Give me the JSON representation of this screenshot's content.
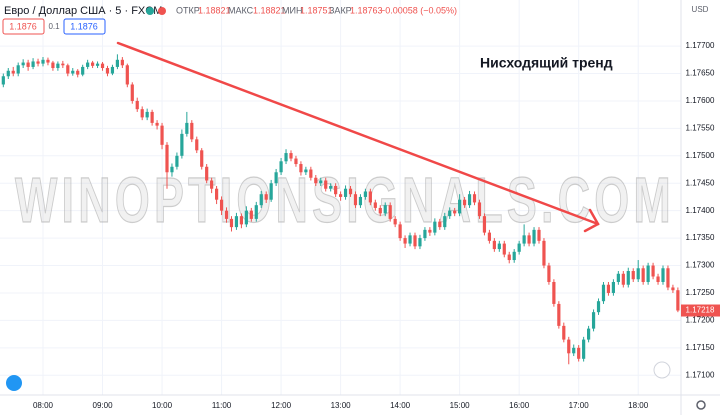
{
  "ui": {
    "symbol": "Евро / Доллар США · 5 · FXCM",
    "open_label": "ОТКР",
    "open": "1.18821",
    "high_label": "МАКС",
    "high": "1.18821",
    "low_label": "МИН",
    "low": "1.18751",
    "close_label": "ЗАКР",
    "close": "1.18763",
    "change": "−0.00058 (−0.05%)",
    "sell_price": "1.1876",
    "spread": "0.1",
    "buy_price": "1.1876",
    "currency": "USD",
    "watermark": "WINOPTIONSIGNALS.COM"
  },
  "chart_data": {
    "type": "candlestick",
    "annotation": "Нисходящий тренд",
    "up_color": "#26a69a",
    "down_color": "#ef5350",
    "grid": true,
    "ylim": [
      1.17064,
      1.17784
    ],
    "yticks": [
      {
        "value": 1.177,
        "label": "1.17700"
      },
      {
        "value": 1.1765,
        "label": "1.17650"
      },
      {
        "value": 1.176,
        "label": "1.17600"
      },
      {
        "value": 1.1755,
        "label": "1.17550"
      },
      {
        "value": 1.175,
        "label": "1.17500"
      },
      {
        "value": 1.1745,
        "label": "1.17450"
      },
      {
        "value": 1.174,
        "label": "1.17400"
      },
      {
        "value": 1.1735,
        "label": "1.17350"
      },
      {
        "value": 1.173,
        "label": "1.17300"
      },
      {
        "value": 1.1725,
        "label": "1.17250"
      },
      {
        "value": 1.172,
        "label": "1.17200"
      },
      {
        "value": 1.1715,
        "label": "1.17150"
      },
      {
        "value": 1.171,
        "label": "1.17100"
      }
    ],
    "categories": [
      null,
      null,
      null,
      null,
      null,
      null,
      null,
      null,
      "08:00",
      null,
      null,
      null,
      null,
      null,
      null,
      null,
      null,
      null,
      null,
      null,
      "09:00",
      null,
      null,
      null,
      null,
      null,
      null,
      null,
      null,
      null,
      null,
      null,
      "10:00",
      null,
      null,
      null,
      null,
      null,
      null,
      null,
      null,
      null,
      null,
      null,
      "11:00",
      null,
      null,
      null,
      null,
      null,
      null,
      null,
      null,
      null,
      null,
      null,
      "12:00",
      null,
      null,
      null,
      null,
      null,
      null,
      null,
      null,
      null,
      null,
      null,
      "13:00",
      null,
      null,
      null,
      null,
      null,
      null,
      null,
      null,
      null,
      null,
      null,
      "14:00",
      null,
      null,
      null,
      null,
      null,
      null,
      null,
      null,
      null,
      null,
      null,
      "15:00",
      null,
      null,
      null,
      null,
      null,
      null,
      null,
      null,
      null,
      null,
      null,
      "16:00",
      null,
      null,
      null,
      null,
      null,
      null,
      null,
      null,
      null,
      null,
      null,
      "17:00",
      null,
      null,
      null,
      null,
      null,
      null,
      null,
      null,
      null,
      null,
      null,
      "18:00",
      null,
      null,
      null,
      null,
      null,
      null,
      null,
      null
    ],
    "candles": [
      [
        1.1763,
        1.1765,
        1.17625,
        1.17645
      ],
      [
        1.17645,
        1.1766,
        1.1764,
        1.17655
      ],
      [
        1.17655,
        1.17662,
        1.17645,
        1.1765
      ],
      [
        1.1765,
        1.1767,
        1.17645,
        1.17665
      ],
      [
        1.17665,
        1.17676,
        1.1766,
        1.1767
      ],
      [
        1.1767,
        1.17675,
        1.17655,
        1.17662
      ],
      [
        1.17662,
        1.17678,
        1.17658,
        1.17672
      ],
      [
        1.17672,
        1.17677,
        1.17663,
        1.17668
      ],
      [
        1.17668,
        1.1768,
        1.17663,
        1.17675
      ],
      [
        1.17675,
        1.17679,
        1.17665,
        1.1767
      ],
      [
        1.1767,
        1.17673,
        1.17655,
        1.1766
      ],
      [
        1.1766,
        1.17672,
        1.17655,
        1.17668
      ],
      [
        1.17668,
        1.17673,
        1.1766,
        1.17665
      ],
      [
        1.17665,
        1.17668,
        1.17645,
        1.1765
      ],
      [
        1.1765,
        1.1766,
        1.17646,
        1.17655
      ],
      [
        1.17655,
        1.17658,
        1.17643,
        1.17648
      ],
      [
        1.17648,
        1.17666,
        1.17645,
        1.17662
      ],
      [
        1.17662,
        1.17675,
        1.17658,
        1.1767
      ],
      [
        1.1767,
        1.17673,
        1.1766,
        1.17664
      ],
      [
        1.17664,
        1.17672,
        1.1766,
        1.17668
      ],
      [
        1.17668,
        1.17671,
        1.17655,
        1.1766
      ],
      [
        1.1766,
        1.17664,
        1.17645,
        1.1765
      ],
      [
        1.1765,
        1.17666,
        1.17647,
        1.17662
      ],
      [
        1.17662,
        1.17685,
        1.17658,
        1.17675
      ],
      [
        1.17675,
        1.1768,
        1.1766,
        1.17665
      ],
      [
        1.17665,
        1.17668,
        1.17625,
        1.1763
      ],
      [
        1.1763,
        1.17634,
        1.17595,
        1.176
      ],
      [
        1.176,
        1.17606,
        1.1758,
        1.17585
      ],
      [
        1.17585,
        1.1759,
        1.17565,
        1.1757
      ],
      [
        1.1757,
        1.17586,
        1.17565,
        1.1758
      ],
      [
        1.1758,
        1.17584,
        1.17555,
        1.1756
      ],
      [
        1.1756,
        1.17565,
        1.17548,
        1.17555
      ],
      [
        1.17555,
        1.1756,
        1.17512,
        1.1752
      ],
      [
        1.1752,
        1.17525,
        1.1744,
        1.1747
      ],
      [
        1.1747,
        1.17486,
        1.17462,
        1.1748
      ],
      [
        1.1748,
        1.17506,
        1.17475,
        1.175
      ],
      [
        1.175,
        1.17548,
        1.17495,
        1.1754
      ],
      [
        1.1754,
        1.1758,
        1.17535,
        1.1756
      ],
      [
        1.1756,
        1.17565,
        1.17525,
        1.1753
      ],
      [
        1.1753,
        1.17535,
        1.17505,
        1.1751
      ],
      [
        1.1751,
        1.17514,
        1.17475,
        1.1748
      ],
      [
        1.1748,
        1.17485,
        1.1745,
        1.17455
      ],
      [
        1.17455,
        1.1746,
        1.17432,
        1.1744
      ],
      [
        1.1744,
        1.17445,
        1.17412,
        1.1742
      ],
      [
        1.1742,
        1.17426,
        1.17392,
        1.174
      ],
      [
        1.174,
        1.17406,
        1.17378,
        1.17385
      ],
      [
        1.17385,
        1.1739,
        1.17362,
        1.1737
      ],
      [
        1.1737,
        1.17396,
        1.17365,
        1.1739
      ],
      [
        1.1739,
        1.17395,
        1.17368,
        1.17375
      ],
      [
        1.17375,
        1.17408,
        1.1737,
        1.174
      ],
      [
        1.174,
        1.17405,
        1.1738,
        1.17385
      ],
      [
        1.17385,
        1.17416,
        1.1738,
        1.1741
      ],
      [
        1.1741,
        1.17436,
        1.17405,
        1.1743
      ],
      [
        1.1743,
        1.17435,
        1.17414,
        1.1742
      ],
      [
        1.1742,
        1.17456,
        1.17416,
        1.1745
      ],
      [
        1.1745,
        1.17476,
        1.17445,
        1.1747
      ],
      [
        1.1747,
        1.17496,
        1.17465,
        1.1749
      ],
      [
        1.1749,
        1.17512,
        1.17485,
        1.17505
      ],
      [
        1.17505,
        1.1751,
        1.1749,
        1.17495
      ],
      [
        1.17495,
        1.175,
        1.1748,
        1.17485
      ],
      [
        1.17485,
        1.1749,
        1.17464,
        1.1747
      ],
      [
        1.1747,
        1.1748,
        1.17465,
        1.17475
      ],
      [
        1.17475,
        1.1748,
        1.17455,
        1.1746
      ],
      [
        1.1746,
        1.17465,
        1.17445,
        1.1745
      ],
      [
        1.1745,
        1.1746,
        1.17445,
        1.17455
      ],
      [
        1.17455,
        1.1746,
        1.17435,
        1.1744
      ],
      [
        1.1744,
        1.1745,
        1.17435,
        1.17445
      ],
      [
        1.17445,
        1.1745,
        1.17425,
        1.1743
      ],
      [
        1.1743,
        1.17435,
        1.17418,
        1.17425
      ],
      [
        1.17425,
        1.17446,
        1.1742,
        1.1744
      ],
      [
        1.1744,
        1.17445,
        1.17425,
        1.1743
      ],
      [
        1.1743,
        1.17435,
        1.17405,
        1.1741
      ],
      [
        1.1741,
        1.1743,
        1.17405,
        1.17425
      ],
      [
        1.17425,
        1.1744,
        1.1742,
        1.17435
      ],
      [
        1.17435,
        1.1744,
        1.1741,
        1.17415
      ],
      [
        1.17415,
        1.1742,
        1.174,
        1.17405
      ],
      [
        1.17405,
        1.1741,
        1.1739,
        1.17395
      ],
      [
        1.17395,
        1.17415,
        1.1739,
        1.1741
      ],
      [
        1.1741,
        1.17415,
        1.1738,
        1.17385
      ],
      [
        1.17385,
        1.1739,
        1.1737,
        1.17375
      ],
      [
        1.17375,
        1.1738,
        1.17345,
        1.1735
      ],
      [
        1.1735,
        1.17355,
        1.17332,
        1.1734
      ],
      [
        1.1734,
        1.1736,
        1.17335,
        1.17355
      ],
      [
        1.17355,
        1.1736,
        1.1733,
        1.17335
      ],
      [
        1.17335,
        1.17356,
        1.1733,
        1.1735
      ],
      [
        1.1735,
        1.1737,
        1.17345,
        1.17365
      ],
      [
        1.17365,
        1.1737,
        1.17354,
        1.1736
      ],
      [
        1.1736,
        1.17386,
        1.17355,
        1.1738
      ],
      [
        1.1738,
        1.17385,
        1.17365,
        1.1737
      ],
      [
        1.1737,
        1.17396,
        1.17365,
        1.1739
      ],
      [
        1.1739,
        1.17406,
        1.17385,
        1.174
      ],
      [
        1.174,
        1.17405,
        1.1739,
        1.17395
      ],
      [
        1.17395,
        1.1743,
        1.1739,
        1.1742
      ],
      [
        1.1742,
        1.17425,
        1.17405,
        1.1741
      ],
      [
        1.1741,
        1.17436,
        1.17405,
        1.1743
      ],
      [
        1.1743,
        1.17435,
        1.1741,
        1.17415
      ],
      [
        1.17415,
        1.1742,
        1.17385,
        1.1739
      ],
      [
        1.1739,
        1.17395,
        1.17355,
        1.1736
      ],
      [
        1.1736,
        1.17365,
        1.1734,
        1.17345
      ],
      [
        1.17345,
        1.1735,
        1.17325,
        1.1733
      ],
      [
        1.1733,
        1.17345,
        1.17325,
        1.1734
      ],
      [
        1.1734,
        1.17345,
        1.17315,
        1.1732
      ],
      [
        1.1732,
        1.17325,
        1.17304,
        1.1731
      ],
      [
        1.1731,
        1.1733,
        1.17305,
        1.17325
      ],
      [
        1.17325,
        1.17345,
        1.1732,
        1.1734
      ],
      [
        1.1734,
        1.17375,
        1.17335,
        1.17355
      ],
      [
        1.17355,
        1.1736,
        1.17335,
        1.1734
      ],
      [
        1.1734,
        1.1737,
        1.17335,
        1.17365
      ],
      [
        1.17365,
        1.1737,
        1.1734,
        1.17345
      ],
      [
        1.17345,
        1.1735,
        1.17295,
        1.173
      ],
      [
        1.173,
        1.17305,
        1.17265,
        1.1727
      ],
      [
        1.1727,
        1.17275,
        1.17225,
        1.1723
      ],
      [
        1.1723,
        1.17235,
        1.17185,
        1.1719
      ],
      [
        1.1719,
        1.17196,
        1.1716,
        1.17165
      ],
      [
        1.17165,
        1.1717,
        1.1712,
        1.1714
      ],
      [
        1.1714,
        1.17156,
        1.17135,
        1.1715
      ],
      [
        1.1715,
        1.17155,
        1.17125,
        1.1713
      ],
      [
        1.1713,
        1.1717,
        1.17125,
        1.17165
      ],
      [
        1.17165,
        1.1719,
        1.1716,
        1.17185
      ],
      [
        1.17185,
        1.1722,
        1.1718,
        1.17215
      ],
      [
        1.17215,
        1.1724,
        1.1721,
        1.17235
      ],
      [
        1.17235,
        1.1727,
        1.1723,
        1.17265
      ],
      [
        1.17265,
        1.1727,
        1.17245,
        1.1725
      ],
      [
        1.1725,
        1.17275,
        1.17245,
        1.1727
      ],
      [
        1.1727,
        1.1729,
        1.17265,
        1.17285
      ],
      [
        1.17285,
        1.1729,
        1.1726,
        1.17265
      ],
      [
        1.17265,
        1.17296,
        1.1726,
        1.1729
      ],
      [
        1.1729,
        1.17295,
        1.1727,
        1.17275
      ],
      [
        1.17275,
        1.1731,
        1.1727,
        1.17295
      ],
      [
        1.17295,
        1.173,
        1.17265,
        1.1727
      ],
      [
        1.1727,
        1.17305,
        1.17265,
        1.173
      ],
      [
        1.173,
        1.17305,
        1.17275,
        1.1728
      ],
      [
        1.1728,
        1.17285,
        1.17265,
        1.1727
      ],
      [
        1.1727,
        1.173,
        1.17265,
        1.17295
      ],
      [
        1.17295,
        1.173,
        1.17255,
        1.1726
      ],
      [
        1.1726,
        1.17265,
        1.1725,
        1.17255
      ],
      [
        1.17255,
        1.1726,
        1.17215,
        1.17218
      ]
    ]
  }
}
